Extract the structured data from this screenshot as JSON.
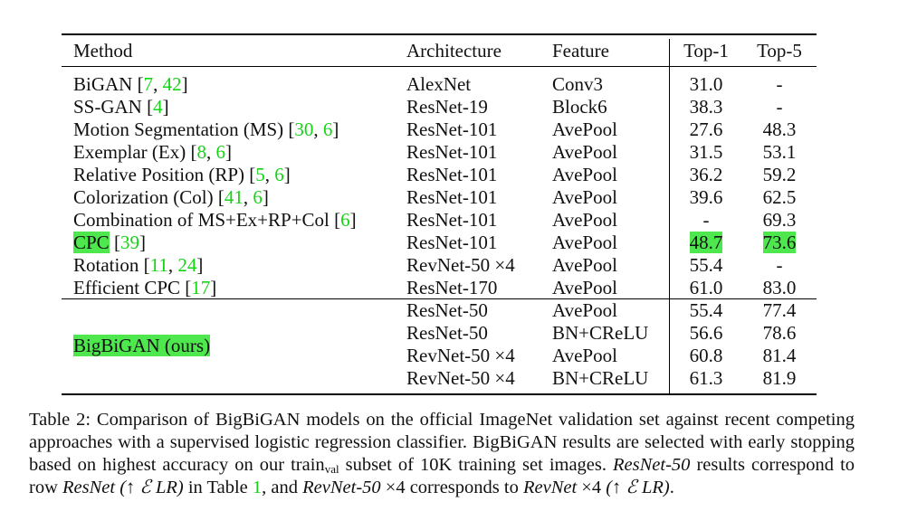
{
  "table": {
    "headers": [
      "Method",
      "Architecture",
      "Feature",
      "Top-1",
      "Top-5"
    ],
    "rows": [
      {
        "method": "BiGAN ",
        "cites": [
          "7",
          "42"
        ],
        "arch": "AlexNet",
        "feature": "Conv3",
        "top1": "31.0",
        "top5": "-"
      },
      {
        "method": "SS-GAN ",
        "cites": [
          "4"
        ],
        "arch": "ResNet-19",
        "feature": "Block6",
        "top1": "38.3",
        "top5": "-"
      },
      {
        "method": "Motion Segmentation (MS) ",
        "cites": [
          "30",
          "6"
        ],
        "arch": "ResNet-101",
        "feature": "AvePool",
        "top1": "27.6",
        "top5": "48.3"
      },
      {
        "method": "Exemplar (Ex) ",
        "cites": [
          "8",
          "6"
        ],
        "arch": "ResNet-101",
        "feature": "AvePool",
        "top1": "31.5",
        "top5": "53.1"
      },
      {
        "method": "Relative Position (RP) ",
        "cites": [
          "5",
          "6"
        ],
        "arch": "ResNet-101",
        "feature": "AvePool",
        "top1": "36.2",
        "top5": "59.2"
      },
      {
        "method": "Colorization (Col) ",
        "cites": [
          "41",
          "6"
        ],
        "arch": "ResNet-101",
        "feature": "AvePool",
        "top1": "39.6",
        "top5": "62.5"
      },
      {
        "method": "Combination of MS+Ex+RP+Col ",
        "cites": [
          "6"
        ],
        "arch": "ResNet-101",
        "feature": "AvePool",
        "top1": "-",
        "top5": "69.3"
      },
      {
        "method": "CPC",
        "cites": [
          "39"
        ],
        "arch": "ResNet-101",
        "feature": "AvePool",
        "top1": "48.7",
        "top5": "73.6",
        "highlight": true
      },
      {
        "method": "Rotation ",
        "cites": [
          "11",
          "24"
        ],
        "arch": "RevNet-50 ×4",
        "feature": "AvePool",
        "top1": "55.4",
        "top5": "-"
      },
      {
        "method": "Efficient CPC ",
        "cites": [
          "17"
        ],
        "arch": "ResNet-170",
        "feature": "AvePool",
        "top1": "61.0",
        "top5": "83.0"
      }
    ],
    "ours": {
      "method": "BigBiGAN (ours)",
      "rows": [
        {
          "arch": "ResNet-50",
          "feature": "AvePool",
          "top1": "55.4",
          "top5": "77.4"
        },
        {
          "arch": "ResNet-50",
          "feature": "BN+CReLU",
          "top1": "56.6",
          "top5": "78.6"
        },
        {
          "arch": "RevNet-50 ×4",
          "feature": "AvePool",
          "top1": "60.8",
          "top5": "81.4"
        },
        {
          "arch": "RevNet-50 ×4",
          "feature": "BN+CReLU",
          "top1": "61.3",
          "top5": "81.9"
        }
      ]
    }
  },
  "caption": {
    "p1": "Table 2: Comparison of BigBiGAN models on the official ImageNet validation set against recent competing approaches with a supervised logistic regression classifier. BigBiGAN results are selected with early stopping based on highest accuracy on our train",
    "sub": "val",
    "p2": " subset of 10K training set images. ",
    "i1": "ResNet-50",
    "p3": " results correspond to row ",
    "i2": "ResNet (↑ ℰ LR)",
    "p4": " in Table ",
    "ref": "1",
    "p5": ", and ",
    "i3": "RevNet-50",
    "p6": " ×4 corresponds to ",
    "i4": "RevNet",
    "p7": " ×4 ",
    "i5": "(↑ ℰ LR)",
    "p8": "."
  },
  "colors": {
    "citation": "#16d416",
    "highlight": "#4ee84e"
  }
}
